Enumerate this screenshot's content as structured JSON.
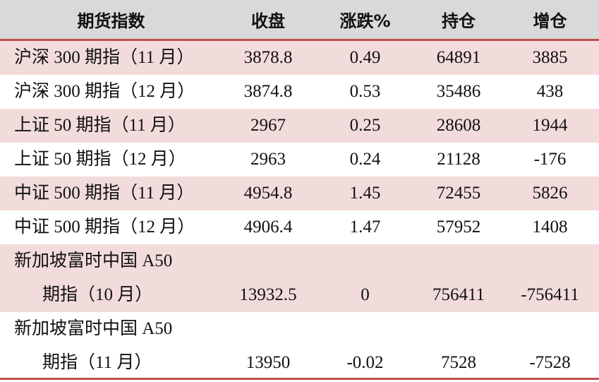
{
  "table": {
    "header": [
      "期货指数",
      "收盘",
      "涨跌%",
      "持仓",
      "增仓"
    ],
    "rows": [
      [
        [
          "沪深 300 期指（11 月）"
        ],
        "3878.8",
        "0.49",
        "64891",
        "3885"
      ],
      [
        [
          "沪深 300 期指（12 月）"
        ],
        "3874.8",
        "0.53",
        "35486",
        "438"
      ],
      [
        [
          "上证 50 期指（11 月）"
        ],
        "2967",
        "0.25",
        "28608",
        "1944"
      ],
      [
        [
          "上证 50 期指（12 月）"
        ],
        "2963",
        "0.24",
        "21128",
        "-176"
      ],
      [
        [
          "中证 500 期指（11 月）"
        ],
        "4954.8",
        "1.45",
        "72455",
        "5826"
      ],
      [
        [
          "中证 500 期指（12 月）"
        ],
        "4906.4",
        "1.47",
        "57952",
        "1408"
      ],
      [
        [
          "新加坡富时中国 A50",
          "期指（10 月）"
        ],
        "13932.5",
        "0",
        "756411",
        "-756411"
      ],
      [
        [
          "新加坡富时中国 A50",
          "期指（11 月）"
        ],
        "13950",
        "-0.02",
        "7528",
        "-7528"
      ]
    ]
  }
}
